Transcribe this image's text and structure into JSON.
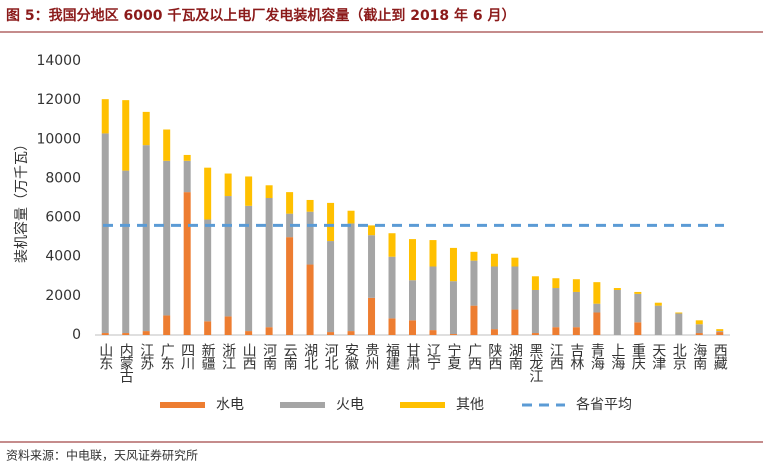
{
  "chart_data": {
    "type": "stacked-bar",
    "title": "图 5：我国分地区 6000 千瓦及以上电厂发电装机容量（截止到 2018 年 6 月）",
    "ylabel": "装机容量（万千瓦）",
    "source": "资料来源：中电联，天风证券研究所",
    "categories": [
      "山东",
      "内蒙古",
      "江苏",
      "广东",
      "四川",
      "新疆",
      "浙江",
      "山西",
      "河南",
      "云南",
      "湖北",
      "河北",
      "安徽",
      "贵州",
      "福建",
      "甘肃",
      "辽宁",
      "宁夏",
      "广西",
      "陕西",
      "湖南",
      "黑龙江",
      "江西",
      "吉林",
      "青海",
      "上海",
      "重庆",
      "天津",
      "北京",
      "海南",
      "西藏"
    ],
    "series": [
      {
        "name": "水电",
        "color": "#ed7d31",
        "values": [
          100,
          100,
          200,
          1000,
          7300,
          700,
          950,
          200,
          400,
          5000,
          3600,
          150,
          200,
          1900,
          850,
          750,
          250,
          50,
          1500,
          300,
          1300,
          100,
          400,
          400,
          1150,
          0,
          650,
          0,
          0,
          100,
          150
        ]
      },
      {
        "name": "火电",
        "color": "#a5a5a5",
        "values": [
          10200,
          8300,
          9500,
          7900,
          1600,
          5200,
          6150,
          6400,
          6600,
          1200,
          2700,
          4650,
          5500,
          3200,
          3150,
          2050,
          3250,
          2700,
          2300,
          3200,
          2200,
          2200,
          2000,
          1800,
          450,
          2300,
          1450,
          1500,
          1100,
          450,
          50
        ]
      },
      {
        "name": "其他",
        "color": "#ffc000",
        "values": [
          1750,
          3600,
          1700,
          1600,
          300,
          2650,
          1150,
          1500,
          650,
          1100,
          600,
          1950,
          650,
          500,
          1200,
          2100,
          1350,
          1700,
          450,
          650,
          450,
          700,
          500,
          650,
          1100,
          100,
          100,
          150,
          50,
          200,
          100
        ]
      }
    ],
    "average": {
      "name": "各省平均",
      "color": "#5b9bd5",
      "value": 5600
    },
    "ylim": [
      0,
      14000
    ],
    "yticks": [
      0,
      2000,
      4000,
      6000,
      8000,
      10000,
      12000,
      14000
    ],
    "grid": false
  }
}
